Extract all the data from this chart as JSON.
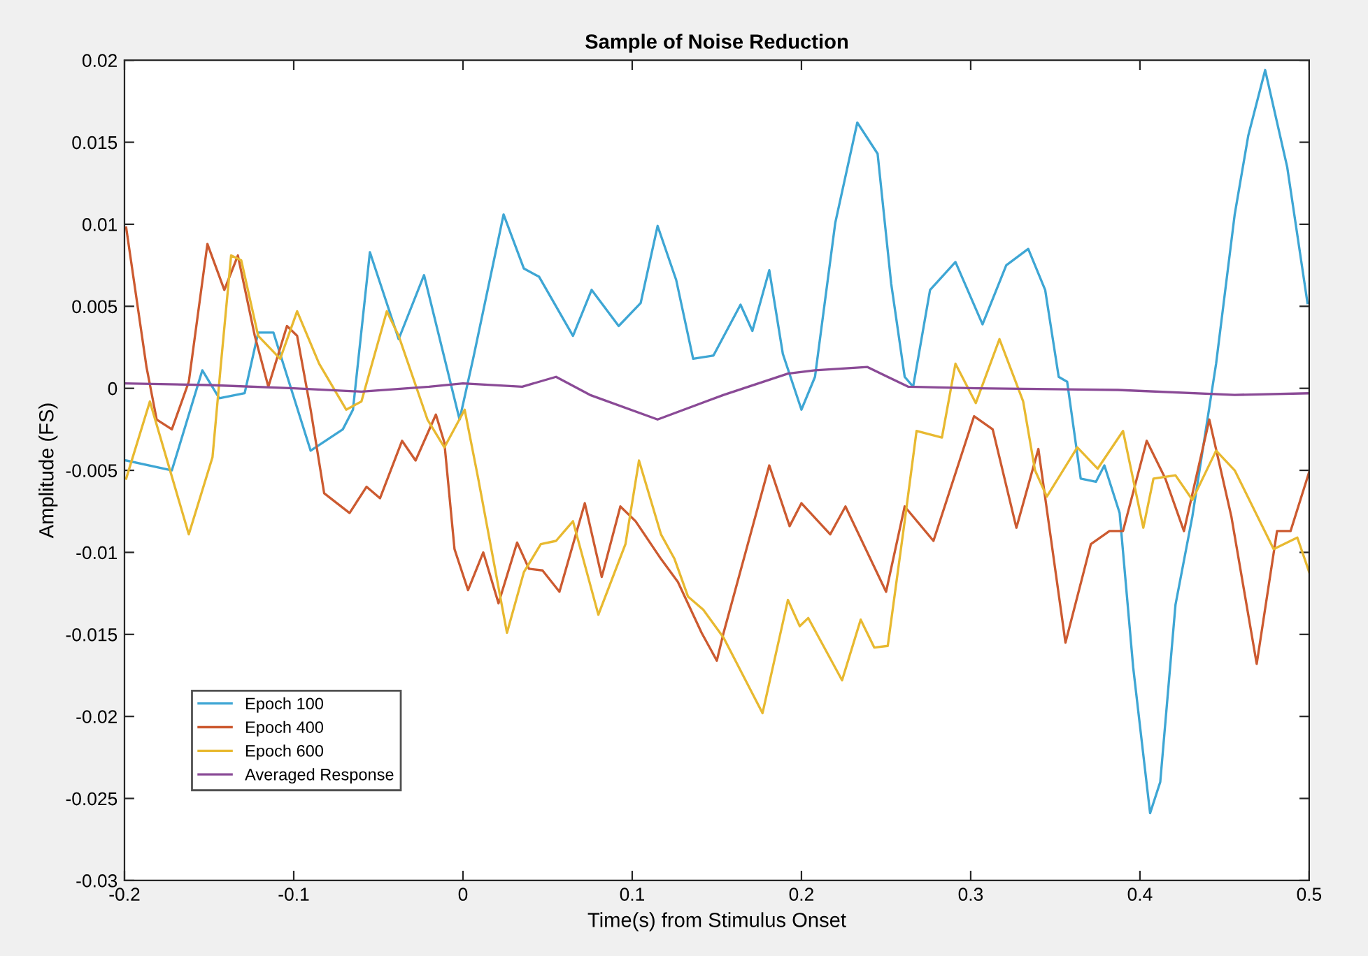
{
  "chart_data": {
    "type": "line",
    "title": "Sample of Noise Reduction",
    "xlabel": "Time(s) from Stimulus Onset",
    "ylabel": "Amplitude (FS)",
    "xlim": [
      -0.2,
      0.5
    ],
    "ylim": [
      -0.03,
      0.02
    ],
    "xticks": [
      -0.2,
      -0.1,
      0,
      0.1,
      0.2,
      0.3,
      0.4,
      0.5
    ],
    "yticks": [
      -0.03,
      -0.025,
      -0.02,
      -0.015,
      -0.01,
      -0.005,
      0,
      0.005,
      0.01,
      0.015,
      0.02
    ],
    "grid": false,
    "legend": "bottom left",
    "marker": "none",
    "line_style": "solid",
    "series": [
      {
        "name": "Epoch 100",
        "color": "#3ea6d4",
        "x": [
          -0.199,
          -0.172,
          -0.154,
          -0.144,
          -0.129,
          -0.121,
          -0.112,
          -0.09,
          -0.071,
          -0.065,
          -0.055,
          -0.038,
          -0.023,
          -0.002,
          0.006,
          0.024,
          0.036,
          0.045,
          0.065,
          0.076,
          0.092,
          0.105,
          0.115,
          0.126,
          0.136,
          0.148,
          0.164,
          0.171,
          0.181,
          0.189,
          0.2,
          0.208,
          0.22,
          0.233,
          0.245,
          0.253,
          0.261,
          0.266,
          0.276,
          0.291,
          0.307,
          0.321,
          0.334,
          0.344,
          0.352,
          0.357,
          0.365,
          0.374,
          0.379,
          0.388,
          0.396,
          0.406,
          0.412,
          0.421,
          0.431,
          0.445,
          0.456,
          0.464,
          0.474,
          0.487,
          0.499
        ],
        "values": [
          -0.0044,
          -0.005,
          0.0011,
          -0.0006,
          -0.0003,
          0.0034,
          0.0034,
          -0.0038,
          -0.0025,
          -0.0013,
          0.0083,
          0.003,
          0.0069,
          -0.0019,
          0.0018,
          0.0106,
          0.0073,
          0.0068,
          0.0032,
          0.006,
          0.0038,
          0.0052,
          0.0099,
          0.0066,
          0.0018,
          0.002,
          0.0051,
          0.0035,
          0.0072,
          0.0021,
          -0.0013,
          0.0007,
          0.0101,
          0.0162,
          0.0143,
          0.0064,
          0.0007,
          0.0001,
          0.006,
          0.0077,
          0.0039,
          0.0075,
          0.0085,
          0.006,
          0.0007,
          0.0004,
          -0.0055,
          -0.0057,
          -0.0047,
          -0.0076,
          -0.017,
          -0.0259,
          -0.024,
          -0.0132,
          -0.0078,
          0.0015,
          0.0106,
          0.0154,
          0.0194,
          0.0135,
          0.0052
        ]
      },
      {
        "name": "Epoch 400",
        "color": "#cc5a30",
        "x": [
          -0.199,
          -0.187,
          -0.181,
          -0.172,
          -0.162,
          -0.151,
          -0.141,
          -0.133,
          -0.123,
          -0.115,
          -0.104,
          -0.098,
          -0.09,
          -0.082,
          -0.067,
          -0.057,
          -0.049,
          -0.036,
          -0.028,
          -0.016,
          -0.011,
          -0.005,
          0.003,
          0.012,
          0.021,
          0.032,
          0.039,
          0.047,
          0.057,
          0.072,
          0.082,
          0.093,
          0.102,
          0.117,
          0.127,
          0.141,
          0.15,
          0.154,
          0.181,
          0.193,
          0.2,
          0.217,
          0.226,
          0.25,
          0.261,
          0.278,
          0.302,
          0.313,
          0.327,
          0.34,
          0.356,
          0.371,
          0.382,
          0.39,
          0.404,
          0.415,
          0.426,
          0.441,
          0.454,
          0.469,
          0.481,
          0.489,
          0.5
        ],
        "values": [
          0.0098,
          0.0013,
          -0.0019,
          -0.0025,
          0.0004,
          0.0088,
          0.006,
          0.0081,
          0.0032,
          0.0001,
          0.0038,
          0.0032,
          -0.0013,
          -0.0064,
          -0.0076,
          -0.006,
          -0.0067,
          -0.0032,
          -0.0044,
          -0.0016,
          -0.0033,
          -0.0098,
          -0.0123,
          -0.01,
          -0.0131,
          -0.0094,
          -0.011,
          -0.0111,
          -0.0124,
          -0.007,
          -0.0115,
          -0.0072,
          -0.0081,
          -0.0104,
          -0.0118,
          -0.0149,
          -0.0166,
          -0.0149,
          -0.0047,
          -0.0084,
          -0.007,
          -0.0089,
          -0.0072,
          -0.0124,
          -0.0072,
          -0.0093,
          -0.0017,
          -0.0025,
          -0.0085,
          -0.0037,
          -0.0155,
          -0.0095,
          -0.0087,
          -0.0087,
          -0.0032,
          -0.0055,
          -0.0087,
          -0.0019,
          -0.0078,
          -0.0168,
          -0.0087,
          -0.0087,
          -0.0051
        ]
      },
      {
        "name": "Epoch 600",
        "color": "#e8b930",
        "x": [
          -0.199,
          -0.185,
          -0.162,
          -0.148,
          -0.143,
          -0.137,
          -0.131,
          -0.121,
          -0.108,
          -0.098,
          -0.085,
          -0.069,
          -0.06,
          -0.045,
          -0.038,
          -0.021,
          -0.011,
          0.001,
          0.009,
          0.026,
          0.036,
          0.046,
          0.055,
          0.065,
          0.08,
          0.096,
          0.104,
          0.117,
          0.125,
          0.133,
          0.142,
          0.154,
          0.177,
          0.192,
          0.199,
          0.204,
          0.224,
          0.235,
          0.243,
          0.251,
          0.261,
          0.268,
          0.283,
          0.291,
          0.303,
          0.317,
          0.331,
          0.338,
          0.345,
          0.363,
          0.375,
          0.39,
          0.402,
          0.408,
          0.421,
          0.431,
          0.445,
          0.456,
          0.479,
          0.493,
          0.5
        ],
        "values": [
          -0.0055,
          -0.0008,
          -0.0089,
          -0.0042,
          0.0015,
          0.0081,
          0.0078,
          0.0032,
          0.0018,
          0.0047,
          0.0015,
          -0.0013,
          -0.0008,
          0.0047,
          0.0032,
          -0.0019,
          -0.0036,
          -0.0013,
          -0.0055,
          -0.0149,
          -0.0112,
          -0.0095,
          -0.0093,
          -0.0081,
          -0.0138,
          -0.0095,
          -0.0044,
          -0.0089,
          -0.0104,
          -0.0127,
          -0.0135,
          -0.0152,
          -0.0198,
          -0.0129,
          -0.0145,
          -0.014,
          -0.0178,
          -0.0141,
          -0.0158,
          -0.0157,
          -0.0081,
          -0.0026,
          -0.003,
          0.0015,
          -0.0009,
          0.003,
          -0.0008,
          -0.005,
          -0.0066,
          -0.0036,
          -0.0049,
          -0.0026,
          -0.0085,
          -0.0055,
          -0.0053,
          -0.0068,
          -0.0038,
          -0.005,
          -0.0098,
          -0.0091,
          -0.0112
        ]
      },
      {
        "name": "Averaged Response",
        "color": "#8a4a96",
        "x": [
          -0.2,
          -0.15,
          -0.1,
          -0.06,
          -0.02,
          0.0,
          0.035,
          0.055,
          0.075,
          0.115,
          0.154,
          0.192,
          0.208,
          0.239,
          0.263,
          0.304,
          0.387,
          0.456,
          0.5
        ],
        "values": [
          0.0003,
          0.0002,
          0.0,
          -0.0002,
          0.0001,
          0.0003,
          0.0001,
          0.0007,
          -0.0004,
          -0.0019,
          -0.0004,
          0.0009,
          0.0011,
          0.0013,
          0.0001,
          0.0,
          -0.0001,
          -0.0004,
          -0.0003
        ]
      }
    ]
  }
}
